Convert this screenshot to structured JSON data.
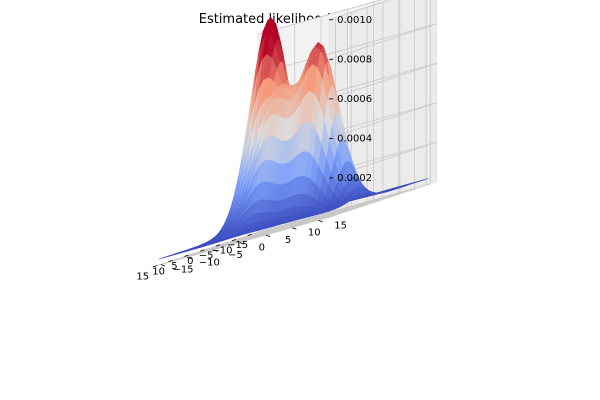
{
  "title": "Estimated likelihood of kNN_30",
  "chart_data": {
    "type": "surface3d",
    "title": "Estimated likelihood of kNN_30",
    "xlabel": "",
    "ylabel": "",
    "zlabel": "",
    "xlim": [
      -17,
      17
    ],
    "ylim": [
      -17,
      17
    ],
    "zlim": [
      0,
      0.001
    ],
    "x_ticks": [
      -15,
      -10,
      -5,
      0,
      5,
      10,
      15
    ],
    "x_tick_labels": [
      "−15",
      "−10",
      "−5",
      "0",
      "5",
      "10",
      "15"
    ],
    "y_ticks": [
      -15,
      -10,
      -5,
      0,
      5,
      10,
      15
    ],
    "y_tick_labels": [
      "−15",
      "−10",
      "−5",
      "0",
      "5",
      "10",
      "15"
    ],
    "z_ticks": [
      0.0002,
      0.0004,
      0.0006,
      0.0008,
      0.001
    ],
    "z_tick_labels": [
      "0.0002",
      "0.0004",
      "0.0006",
      "0.0008",
      "0.0010"
    ],
    "colormap": "coolwarm",
    "grid": true,
    "peaks": [
      {
        "x": -4,
        "y": -7,
        "z": 0.00095
      },
      {
        "x": 5,
        "y": 8,
        "z": 0.00085
      },
      {
        "x": 6,
        "y": 0,
        "z": 0.0006
      },
      {
        "x": 0,
        "y": -4,
        "z": 0.0004
      },
      {
        "x": 0,
        "y": 2,
        "z": 0.0003
      }
    ],
    "base_level": 3e-05
  }
}
